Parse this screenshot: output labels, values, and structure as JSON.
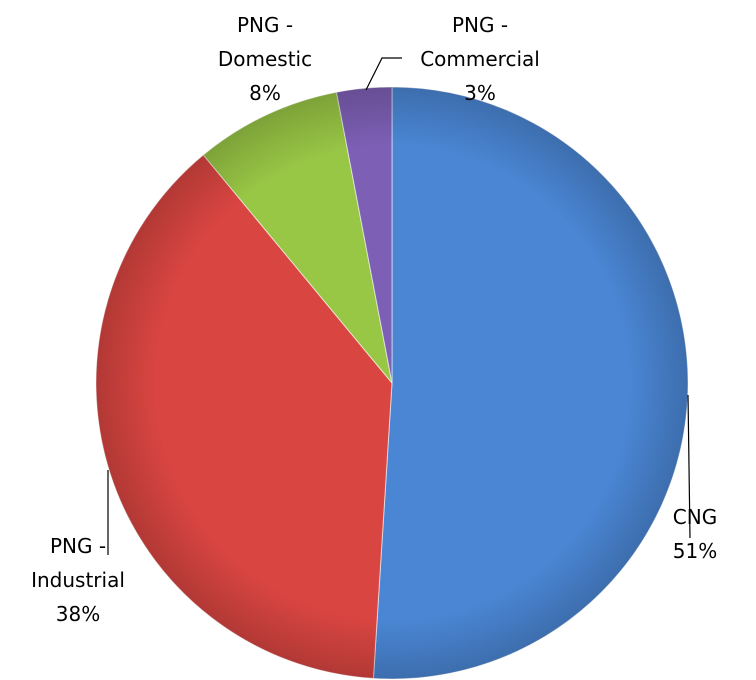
{
  "chart_data": {
    "type": "pie",
    "categories": [
      "CNG",
      "PNG - Industrial",
      "PNG - Domestic",
      "PNG - Commercial"
    ],
    "values": [
      51,
      38,
      8,
      3
    ],
    "value_labels": [
      "51%",
      "38%",
      "8%",
      "3%"
    ],
    "colors": [
      "#4a86d4",
      "#d94541",
      "#98c645",
      "#7d5fb5"
    ]
  }
}
